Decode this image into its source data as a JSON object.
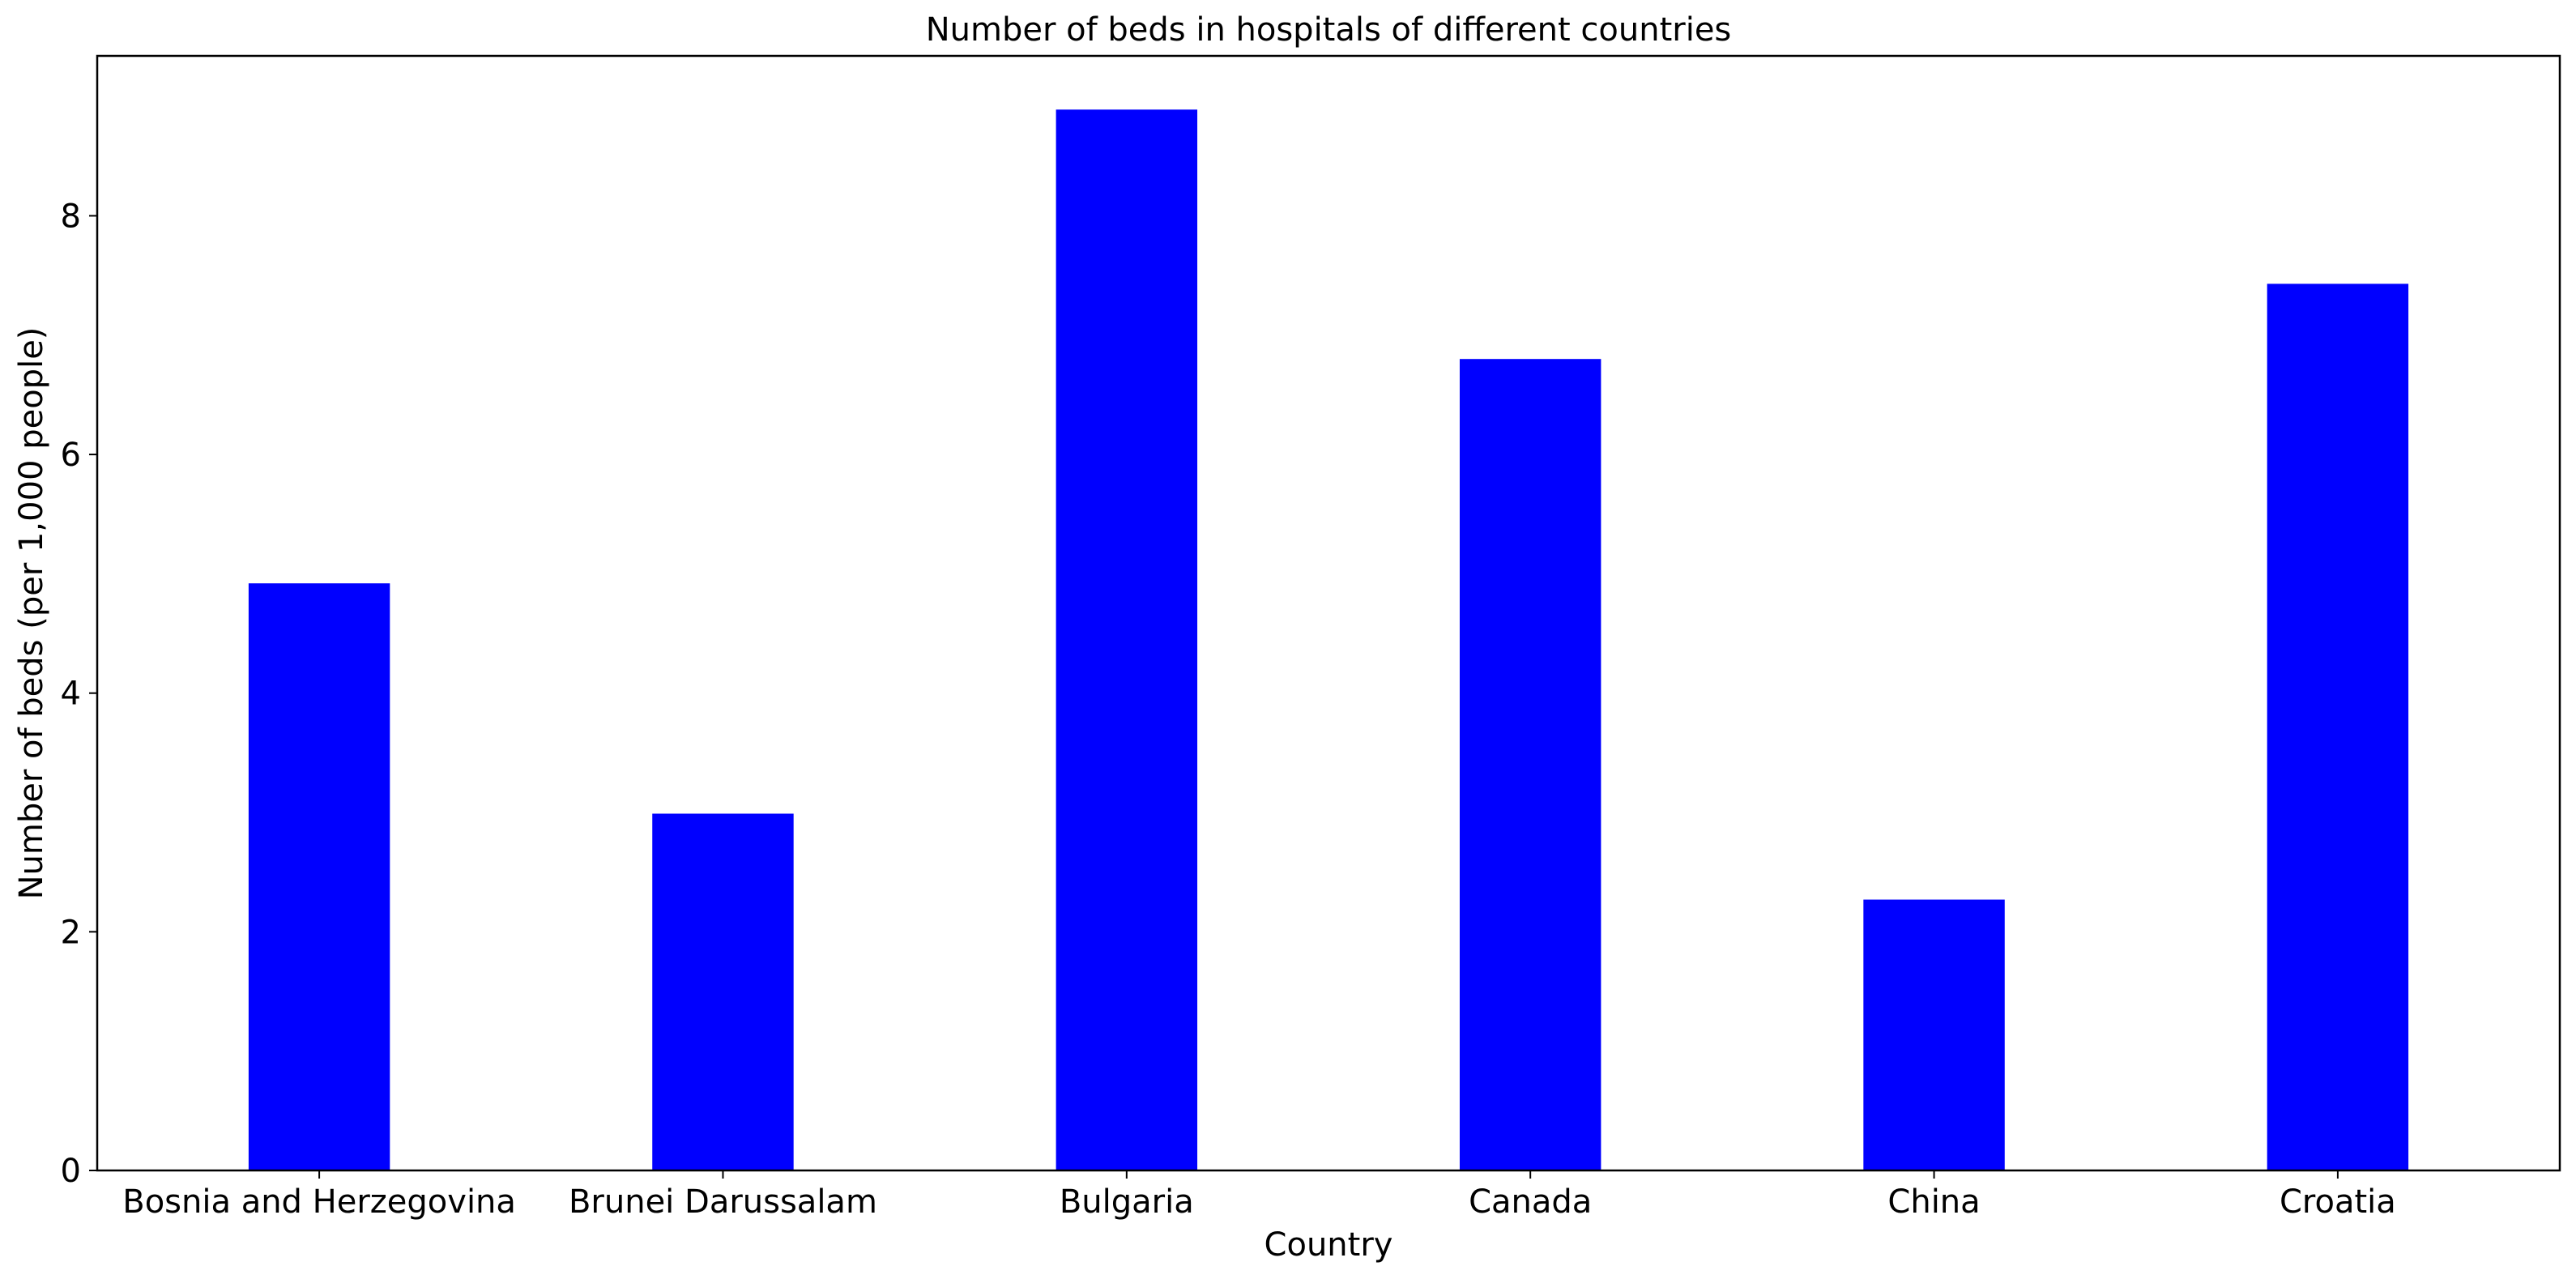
{
  "chart_data": {
    "type": "bar",
    "title": "Number of beds in hospitals of different countries",
    "xlabel": "Country",
    "ylabel": "Number of beds (per 1,000 people)",
    "categories": [
      "Bosnia and Herzegovina",
      "Brunei Darussalam",
      "Bulgaria",
      "Canada",
      "China",
      "Croatia"
    ],
    "values": [
      4.92,
      2.99,
      8.89,
      6.8,
      2.27,
      7.43
    ],
    "ylim": [
      0,
      9.34
    ],
    "yticks": [
      0,
      2,
      4,
      6,
      8
    ],
    "grid": false,
    "bar_color": "#0000ff"
  }
}
